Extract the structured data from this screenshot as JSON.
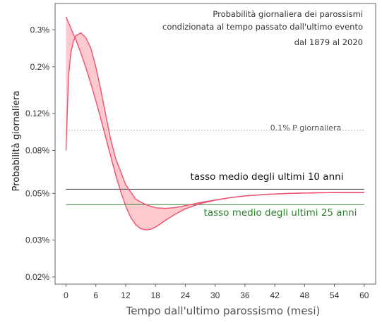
{
  "chart_data": {
    "type": "line",
    "title_lines": [
      "Probabilità giornaliera dei parossismi",
      "condizionata al tempo passato dall'ultimo evento",
      "dal 1879 al 2020"
    ],
    "xlabel": "Tempo dall'ultimo parossismo (mesi)",
    "ylabel": "Probabilità giornaliera",
    "x_ticks": [
      0,
      6,
      12,
      18,
      24,
      30,
      36,
      42,
      48,
      54,
      60
    ],
    "x_tick_labels": [
      "0",
      "6",
      "12",
      "18",
      "24",
      "30",
      "36",
      "42",
      "48",
      "54",
      "60"
    ],
    "y_ticks": [
      0.02,
      0.03,
      0.05,
      0.08,
      0.12,
      0.2,
      0.3
    ],
    "y_tick_labels": [
      "0.02%",
      "0.03%",
      "0.05%",
      "0.08%",
      "0.12%",
      "0.2%",
      "0.3%"
    ],
    "y_scale": "log",
    "xlim": [
      -2.2,
      62.3
    ],
    "ylim": [
      0.0185,
      0.4
    ],
    "grid": false,
    "colors": {
      "curve": "#f0506e",
      "fill": "#fbc9ce",
      "ten_year": "#555555",
      "twentyfive_year": "#5a9a5a",
      "reference": "#999999"
    },
    "series": [
      {
        "name": "",
        "x": [
          0,
          0.5,
          1,
          1.5,
          2,
          3,
          4,
          5,
          6,
          7,
          8,
          9,
          10,
          12,
          14,
          16,
          18,
          20,
          22,
          24,
          27,
          30,
          33,
          36,
          40,
          45,
          50,
          55,
          60
        ],
        "y": [
          0.08,
          0.18,
          0.235,
          0.265,
          0.282,
          0.29,
          0.275,
          0.245,
          0.2,
          0.155,
          0.118,
          0.09,
          0.073,
          0.055,
          0.047,
          0.0442,
          0.0427,
          0.0424,
          0.0428,
          0.0437,
          0.0452,
          0.0465,
          0.0477,
          0.0486,
          0.0494,
          0.05,
          0.0503,
          0.0505,
          0.0505
        ]
      },
      {
        "name": "",
        "x": [
          0,
          1,
          2,
          3,
          4,
          5,
          6,
          7,
          8,
          9,
          10,
          11,
          12,
          13,
          14,
          15,
          16,
          17,
          18,
          19,
          20,
          22,
          24,
          27,
          30,
          33,
          36,
          40,
          45,
          50,
          55,
          60
        ],
        "y": [
          0.345,
          0.305,
          0.268,
          0.232,
          0.198,
          0.166,
          0.138,
          0.113,
          0.092,
          0.075,
          0.061,
          0.051,
          0.0435,
          0.0385,
          0.0355,
          0.034,
          0.0335,
          0.0337,
          0.0345,
          0.0358,
          0.0372,
          0.0398,
          0.0422,
          0.0447,
          0.0464,
          0.0477,
          0.0486,
          0.0494,
          0.05,
          0.0503,
          0.0505,
          0.0505
        ]
      }
    ],
    "reference_lines": [
      {
        "label": "tasso medio degli ultimi 10 anni",
        "y": 0.0523,
        "style": "solid",
        "color": "#555555"
      },
      {
        "label": "tasso medio degli ultimi 25 anni",
        "y": 0.0442,
        "style": "solid",
        "color": "#5a9a5a"
      },
      {
        "label": "0.1% P giornaliera",
        "y": 0.1,
        "style": "dotted",
        "color": "#999999"
      }
    ]
  }
}
